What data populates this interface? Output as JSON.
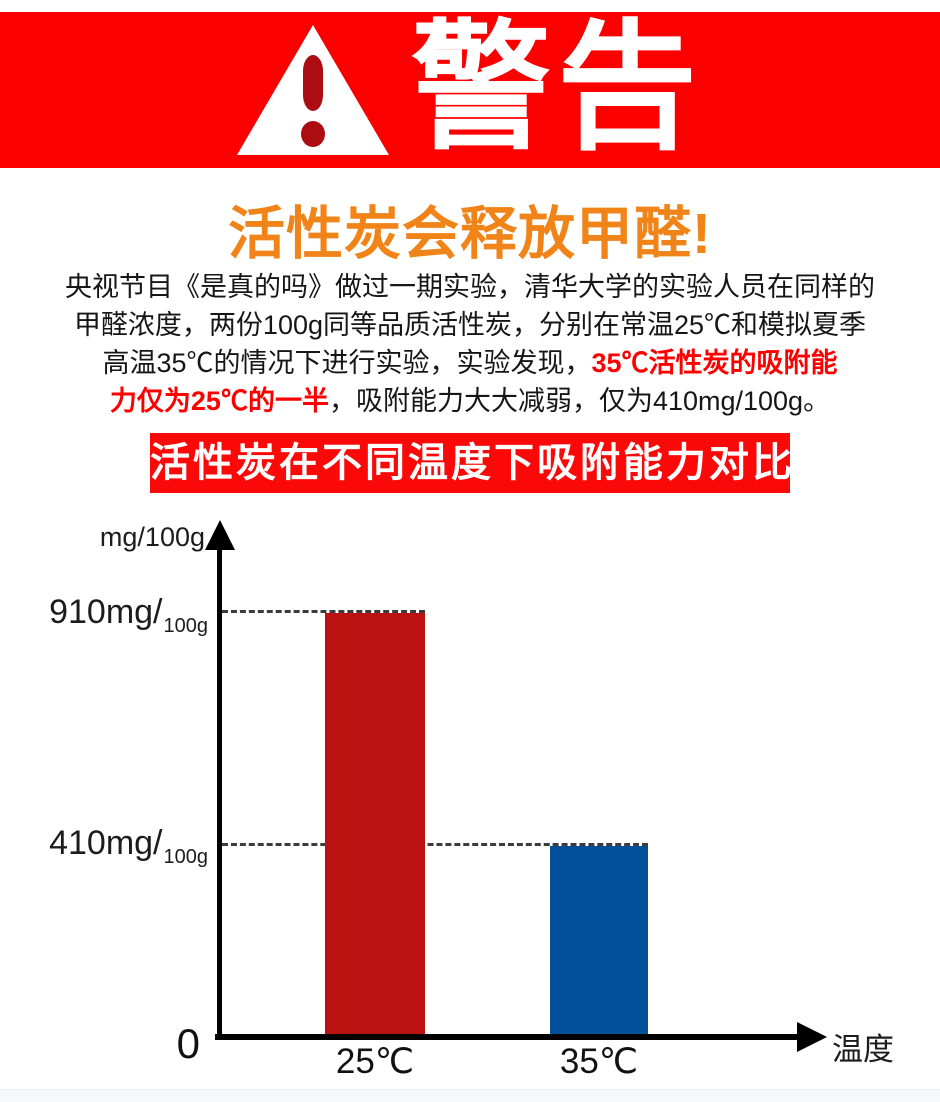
{
  "warning_banner": {
    "label": "警告",
    "background": "#fc0000",
    "icon": "warning-triangle-exclamation",
    "icon_accent": "#ab0d13"
  },
  "headline": {
    "text": "活性炭会释放甲醛!",
    "color": "#f08418"
  },
  "intro": {
    "line1": "央视节目《是真的吗》做过一期实验，清华大学的实验人员在同样的",
    "line2": "甲醛浓度，两份100g同等品质活性炭，分别在常温25℃和模拟夏季",
    "line3_black": "高温35℃的情况下进行实验，实验发现，",
    "line3_red": "35℃活性炭的吸附能",
    "line4_red": "力仅为25℃的一半",
    "line4_black": "，吸附能力大大减弱，仅为410mg/100g。",
    "highlight_color": "#fe0000"
  },
  "chart_banner": {
    "text": "活性炭在不同温度下吸附能力对比",
    "background": "#fb0808"
  },
  "chart_data": {
    "type": "bar",
    "title": "活性炭在不同温度下吸附能力对比",
    "unit_label": "mg/100g",
    "xlabel": "温度",
    "origin_label": "0",
    "categories": [
      "25℃",
      "35℃"
    ],
    "values": [
      910,
      410
    ],
    "bar_colors": [
      "#bb1110",
      "#02509a"
    ],
    "value_labels": [
      {
        "main": "910mg/",
        "sub": "100g"
      },
      {
        "main": "410mg/",
        "sub": "100g"
      }
    ],
    "ylim": [
      0,
      1050
    ],
    "grid": "dashed horizontal guides at each bar value",
    "legend": "none"
  }
}
